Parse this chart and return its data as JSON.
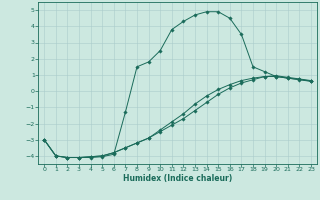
{
  "xlabel": "Humidex (Indice chaleur)",
  "xlim": [
    -0.5,
    23.5
  ],
  "ylim": [
    -4.5,
    5.5
  ],
  "xticks": [
    0,
    1,
    2,
    3,
    4,
    5,
    6,
    7,
    8,
    9,
    10,
    11,
    12,
    13,
    14,
    15,
    16,
    17,
    18,
    19,
    20,
    21,
    22,
    23
  ],
  "yticks": [
    -4,
    -3,
    -2,
    -1,
    0,
    1,
    2,
    3,
    4,
    5
  ],
  "bg_color": "#cce8e0",
  "grid_color": "#aacccc",
  "line_color": "#1a6b5a",
  "line1_x": [
    0,
    1,
    2,
    3,
    4,
    5,
    6,
    7,
    8,
    9,
    10,
    11,
    12,
    13,
    14,
    15,
    16,
    17,
    18,
    19,
    20,
    21,
    22,
    23
  ],
  "line1_y": [
    -3.0,
    -4.0,
    -4.1,
    -4.1,
    -4.1,
    -4.05,
    -3.9,
    -1.3,
    1.5,
    1.8,
    2.5,
    3.8,
    4.3,
    4.7,
    4.9,
    4.9,
    4.5,
    3.5,
    1.5,
    1.2,
    0.9,
    0.8,
    0.7,
    0.6
  ],
  "line2_x": [
    0,
    1,
    2,
    3,
    4,
    5,
    6,
    7,
    8,
    9,
    10,
    11,
    12,
    13,
    14,
    15,
    16,
    17,
    18,
    19,
    20,
    21,
    22,
    23
  ],
  "line2_y": [
    -3.0,
    -4.0,
    -4.1,
    -4.1,
    -4.05,
    -4.0,
    -3.8,
    -3.5,
    -3.2,
    -2.9,
    -2.5,
    -2.1,
    -1.7,
    -1.2,
    -0.7,
    -0.2,
    0.2,
    0.5,
    0.7,
    0.9,
    0.95,
    0.85,
    0.75,
    0.65
  ],
  "line3_x": [
    0,
    1,
    2,
    3,
    4,
    5,
    6,
    7,
    8,
    9,
    10,
    11,
    12,
    13,
    14,
    15,
    16,
    17,
    18,
    19,
    20,
    21,
    22,
    23
  ],
  "line3_y": [
    -3.0,
    -4.0,
    -4.1,
    -4.1,
    -4.05,
    -4.0,
    -3.8,
    -3.5,
    -3.2,
    -2.9,
    -2.4,
    -1.9,
    -1.4,
    -0.8,
    -0.3,
    0.1,
    0.4,
    0.65,
    0.8,
    0.9,
    0.9,
    0.8,
    0.72,
    0.62
  ],
  "tick_fontsize": 4.5,
  "xlabel_fontsize": 5.5,
  "marker_size": 1.8,
  "line_width": 0.7
}
